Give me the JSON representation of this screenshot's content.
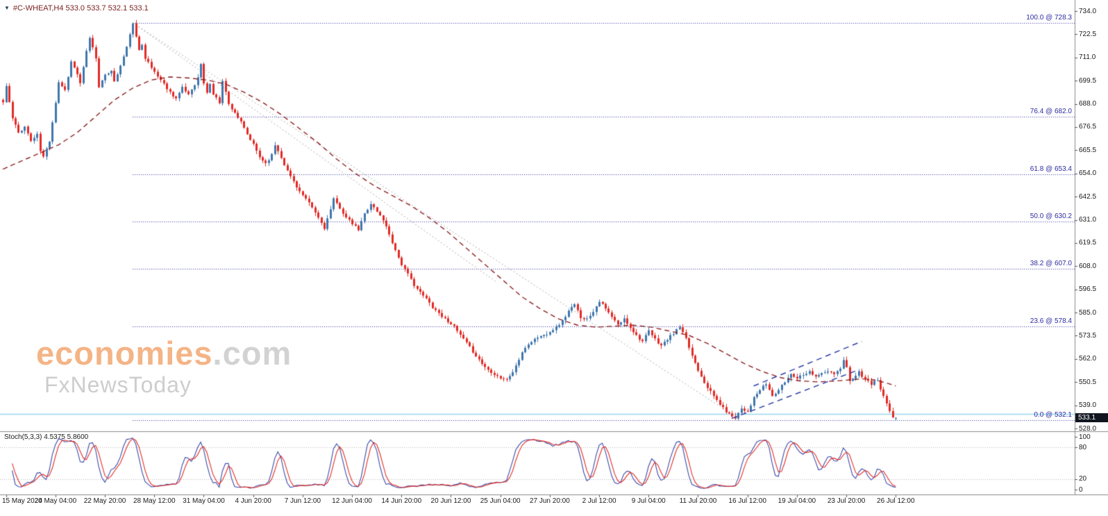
{
  "header": {
    "symbol_line": "#C-WHEAT,H4 533.0 533.7 532.1 533.1"
  },
  "watermark": {
    "brand_main": "economies",
    "brand_suffix": ".com",
    "tagline": "FxNewsToday",
    "brand_color": "#f2a269",
    "suffix_color": "#c8c8c8",
    "tagline_color": "#cbcbcb"
  },
  "price_axis": {
    "labels": [
      "734.0",
      "722.5",
      "711.0",
      "699.5",
      "688.0",
      "676.5",
      "665.5",
      "654.0",
      "642.5",
      "631.0",
      "619.5",
      "608.0",
      "596.5",
      "585.0",
      "573.5",
      "562.0",
      "550.5",
      "539.0",
      "528.0"
    ],
    "current_price": "533.1",
    "badge_bg": "#10151f",
    "badge_text_color": "#ffffff"
  },
  "time_axis": {
    "labels": [
      "15 May 2024",
      "20 May 04:00",
      "22 May 20:00",
      "28 May 12:00",
      "31 May 04:00",
      "4 Jun 20:00",
      "7 Jun 12:00",
      "12 Jun 04:00",
      "14 Jun 20:00",
      "20 Jun 12:00",
      "25 Jun 04:00",
      "27 Jun 20:00",
      "2 Jul 12:00",
      "9 Jul 04:00",
      "11 Jul 20:00",
      "16 Jul 12:00",
      "19 Jul 04:00",
      "23 Jul 20:00",
      "26 Jul 12:00"
    ]
  },
  "indicator_panel": {
    "label": "Stoch(5,3,3) 4.5375 5.8600",
    "main_value": 4.5375,
    "signal_value": 5.86,
    "axis_labels": [
      "100",
      "80",
      "20",
      "0"
    ],
    "levels": [
      80,
      20
    ],
    "main_color": "#3a48a8",
    "signal_color": "#e02b23"
  },
  "chart_data": {
    "type": "candlestick",
    "symbol": "#C-WHEAT",
    "timeframe": "H4",
    "ylim": [
      528.0,
      734.0
    ],
    "bars": 290,
    "last_candle": {
      "open": 533.0,
      "high": 533.7,
      "low": 532.1,
      "close": 533.1
    },
    "indicator": {
      "name": "Stoch",
      "params": [
        5,
        3,
        3
      ],
      "last_main": 4.5375,
      "last_signal": 5.86
    },
    "fib_start_bar": 42,
    "fib_levels": [
      {
        "ratio": 100.0,
        "price": 728.3,
        "label": "100.0 @ 728.3"
      },
      {
        "ratio": 76.4,
        "price": 682.0,
        "label": "76.4 @ 682.0"
      },
      {
        "ratio": 61.8,
        "price": 653.4,
        "label": "61.8 @ 653.4"
      },
      {
        "ratio": 50.0,
        "price": 630.2,
        "label": "50.0 @ 630.2"
      },
      {
        "ratio": 38.2,
        "price": 607.0,
        "label": "38.2 @ 607.0"
      },
      {
        "ratio": 23.6,
        "price": 578.4,
        "label": "23.6 @ 578.4"
      },
      {
        "ratio": 0.0,
        "price": 532.1,
        "label": "0.0 @ 532.1"
      }
    ],
    "support_line_price": 535.0,
    "close_anchors": [
      [
        0,
        689
      ],
      [
        1,
        697
      ],
      [
        3,
        681
      ],
      [
        5,
        674
      ],
      [
        7,
        677
      ],
      [
        9,
        670
      ],
      [
        11,
        673
      ],
      [
        12,
        665
      ],
      [
        13,
        662
      ],
      [
        15,
        670
      ],
      [
        17,
        689
      ],
      [
        18,
        699
      ],
      [
        20,
        695
      ],
      [
        22,
        709
      ],
      [
        24,
        703
      ],
      [
        25,
        698
      ],
      [
        27,
        714
      ],
      [
        28,
        721
      ],
      [
        29,
        716
      ],
      [
        30,
        711
      ],
      [
        31,
        697
      ],
      [
        33,
        702
      ],
      [
        35,
        705
      ],
      [
        36,
        699
      ],
      [
        38,
        707
      ],
      [
        40,
        716
      ],
      [
        41,
        723
      ],
      [
        42,
        727.5
      ],
      [
        43,
        721
      ],
      [
        44,
        715
      ],
      [
        45,
        718
      ],
      [
        46,
        711
      ],
      [
        48,
        706
      ],
      [
        50,
        702
      ],
      [
        52,
        698
      ],
      [
        54,
        694
      ],
      [
        56,
        691
      ],
      [
        58,
        696
      ],
      [
        60,
        693
      ],
      [
        62,
        698
      ],
      [
        63,
        701
      ],
      [
        64,
        708
      ],
      [
        65,
        698
      ],
      [
        66,
        694
      ],
      [
        67,
        698
      ],
      [
        68,
        693
      ],
      [
        70,
        689
      ],
      [
        71,
        700
      ],
      [
        72,
        694
      ],
      [
        73,
        688
      ],
      [
        75,
        684
      ],
      [
        77,
        679
      ],
      [
        79,
        673
      ],
      [
        81,
        668
      ],
      [
        83,
        662
      ],
      [
        85,
        659
      ],
      [
        87,
        663
      ],
      [
        88,
        668
      ],
      [
        90,
        662
      ],
      [
        92,
        655
      ],
      [
        94,
        650
      ],
      [
        96,
        645
      ],
      [
        98,
        641
      ],
      [
        100,
        637
      ],
      [
        102,
        632
      ],
      [
        104,
        627
      ],
      [
        106,
        636
      ],
      [
        107,
        641
      ],
      [
        109,
        637
      ],
      [
        111,
        632
      ],
      [
        113,
        629
      ],
      [
        115,
        626
      ],
      [
        117,
        634
      ],
      [
        119,
        639
      ],
      [
        121,
        635
      ],
      [
        123,
        631
      ],
      [
        125,
        624
      ],
      [
        127,
        616
      ],
      [
        129,
        609
      ],
      [
        131,
        604
      ],
      [
        133,
        599
      ],
      [
        135,
        595
      ],
      [
        137,
        592
      ],
      [
        139,
        588
      ],
      [
        141,
        585
      ],
      [
        143,
        582
      ],
      [
        145,
        580
      ],
      [
        147,
        576
      ],
      [
        149,
        572
      ],
      [
        151,
        568
      ],
      [
        153,
        564
      ],
      [
        155,
        560
      ],
      [
        157,
        557
      ],
      [
        159,
        555
      ],
      [
        161,
        553
      ],
      [
        163,
        552
      ],
      [
        165,
        556
      ],
      [
        167,
        562
      ],
      [
        169,
        568
      ],
      [
        171,
        571
      ],
      [
        173,
        573
      ],
      [
        175,
        574
      ],
      [
        177,
        576
      ],
      [
        179,
        578
      ],
      [
        181,
        581
      ],
      [
        183,
        586
      ],
      [
        185,
        589
      ],
      [
        187,
        583
      ],
      [
        189,
        582
      ],
      [
        191,
        586
      ],
      [
        193,
        591
      ],
      [
        195,
        587
      ],
      [
        197,
        583
      ],
      [
        199,
        579
      ],
      [
        201,
        582
      ],
      [
        203,
        578
      ],
      [
        205,
        574
      ],
      [
        207,
        571
      ],
      [
        209,
        576
      ],
      [
        211,
        572
      ],
      [
        213,
        569
      ],
      [
        215,
        572
      ],
      [
        217,
        575
      ],
      [
        219,
        578
      ],
      [
        221,
        572
      ],
      [
        223,
        564
      ],
      [
        225,
        557
      ],
      [
        227,
        551
      ],
      [
        229,
        546
      ],
      [
        231,
        542
      ],
      [
        233,
        538
      ],
      [
        235,
        535
      ],
      [
        237,
        533.5
      ],
      [
        239,
        538
      ],
      [
        241,
        536.5
      ],
      [
        243,
        543
      ],
      [
        245,
        547
      ],
      [
        247,
        550
      ],
      [
        249,
        544
      ],
      [
        251,
        547
      ],
      [
        253,
        551
      ],
      [
        255,
        555
      ],
      [
        257,
        553
      ],
      [
        259,
        555
      ],
      [
        261,
        556
      ],
      [
        263,
        554
      ],
      [
        265,
        555
      ],
      [
        267,
        556
      ],
      [
        269,
        555
      ],
      [
        271,
        557
      ],
      [
        272,
        562
      ],
      [
        273,
        558
      ],
      [
        274,
        552
      ],
      [
        276,
        554
      ],
      [
        277,
        556
      ],
      [
        279,
        552
      ],
      [
        281,
        550
      ],
      [
        283,
        552
      ],
      [
        284,
        547
      ],
      [
        285,
        544
      ],
      [
        286,
        540
      ],
      [
        287,
        536
      ],
      [
        288,
        533.5
      ],
      [
        289,
        533.1
      ]
    ],
    "ma_anchors": [
      [
        0,
        656
      ],
      [
        6,
        660
      ],
      [
        12,
        664
      ],
      [
        18,
        668
      ],
      [
        24,
        674
      ],
      [
        30,
        682
      ],
      [
        36,
        690
      ],
      [
        42,
        696
      ],
      [
        48,
        700
      ],
      [
        54,
        701.5
      ],
      [
        60,
        701
      ],
      [
        66,
        700
      ],
      [
        72,
        698
      ],
      [
        78,
        694
      ],
      [
        84,
        689
      ],
      [
        90,
        683
      ],
      [
        96,
        676
      ],
      [
        102,
        669
      ],
      [
        108,
        661
      ],
      [
        114,
        654
      ],
      [
        120,
        648
      ],
      [
        126,
        643
      ],
      [
        132,
        638
      ],
      [
        138,
        632
      ],
      [
        144,
        625
      ],
      [
        150,
        617
      ],
      [
        156,
        609
      ],
      [
        162,
        601
      ],
      [
        168,
        593
      ],
      [
        174,
        587
      ],
      [
        180,
        582
      ],
      [
        186,
        579
      ],
      [
        192,
        578
      ],
      [
        198,
        578.5
      ],
      [
        204,
        579
      ],
      [
        210,
        578
      ],
      [
        216,
        576
      ],
      [
        222,
        574
      ],
      [
        228,
        570
      ],
      [
        234,
        565
      ],
      [
        240,
        560
      ],
      [
        246,
        556
      ],
      [
        252,
        553
      ],
      [
        258,
        551.5
      ],
      [
        264,
        551
      ],
      [
        270,
        551.5
      ],
      [
        274,
        552
      ],
      [
        278,
        552.5
      ],
      [
        282,
        552
      ],
      [
        286,
        550.5
      ],
      [
        289,
        549
      ]
    ],
    "trendlines": [
      {
        "from": [
          42,
          728.3
        ],
        "to": [
          236,
          535
        ]
      },
      {
        "from": [
          42,
          728.3
        ],
        "to": [
          160,
          600
        ]
      }
    ],
    "channel": {
      "lower": {
        "from": [
          236,
          533
        ],
        "to": [
          277,
          557
        ]
      },
      "upper": {
        "from": [
          243,
          549
        ],
        "to": [
          278,
          571
        ]
      }
    },
    "colors": {
      "up": "#3f76ad",
      "down": "#e22a25",
      "ma": "#8b1f1f",
      "fib": "#2b2ba0",
      "trendline": "#c4c4c4",
      "channel": "#2d3fa8",
      "support": "#9ad6ef"
    }
  }
}
